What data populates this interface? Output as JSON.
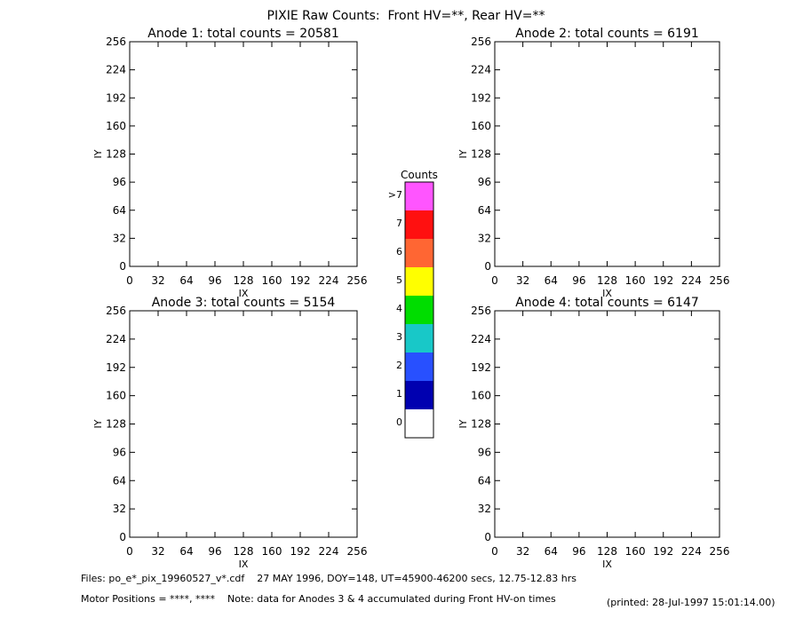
{
  "title": "PIXIE Raw Counts:  Front HV=**, Rear HV=**",
  "colorbar": {
    "title": "Counts",
    "labels": [
      "0",
      "1",
      "2",
      "3",
      "4",
      "5",
      "6",
      "7",
      ">7"
    ],
    "colors": [
      "#ffffff",
      "#0000b0",
      "#2850ff",
      "#18c8c8",
      "#00dd00",
      "#ffff00",
      "#ff6633",
      "#ff1010",
      "#ff55ff"
    ]
  },
  "footer": {
    "files": "Files: po_e*_pix_19960527_v*.cdf    27 MAY 1996, DOY=148, UT=45900-46200 secs, 12.75-12.83 hrs",
    "motor": "Motor Positions = ****, ****    Note: data for Anodes 3 & 4 accumulated during Front HV-on times",
    "printed": "(printed: 28-Jul-1997 15:01:14.00)"
  },
  "chart_data": [
    {
      "type": "scatter",
      "title": "Anode 1: total counts = 20581",
      "xlabel": "IX",
      "ylabel": "IY",
      "xlim": [
        0,
        256
      ],
      "ylim": [
        0,
        256
      ],
      "xticks": [
        0,
        32,
        64,
        96,
        128,
        160,
        192,
        224,
        256
      ],
      "yticks": [
        0,
        32,
        64,
        96,
        128,
        160,
        192,
        224,
        256
      ]
    },
    {
      "type": "scatter",
      "title": "Anode 2: total counts = 6191",
      "xlabel": "IX",
      "ylabel": "IY",
      "xlim": [
        0,
        256
      ],
      "ylim": [
        0,
        256
      ],
      "xticks": [
        0,
        32,
        64,
        96,
        128,
        160,
        192,
        224,
        256
      ],
      "yticks": [
        0,
        32,
        64,
        96,
        128,
        160,
        192,
        224,
        256
      ]
    },
    {
      "type": "scatter",
      "title": "Anode 3: total counts = 5154",
      "xlabel": "IX",
      "ylabel": "IY",
      "xlim": [
        0,
        256
      ],
      "ylim": [
        0,
        256
      ],
      "xticks": [
        0,
        32,
        64,
        96,
        128,
        160,
        192,
        224,
        256
      ],
      "yticks": [
        0,
        32,
        64,
        96,
        128,
        160,
        192,
        224,
        256
      ]
    },
    {
      "type": "scatter",
      "title": "Anode 4: total counts = 6147",
      "xlabel": "IX",
      "ylabel": "IY",
      "xlim": [
        0,
        256
      ],
      "ylim": [
        0,
        256
      ],
      "xticks": [
        0,
        32,
        64,
        96,
        128,
        160,
        192,
        224,
        256
      ],
      "yticks": [
        0,
        32,
        64,
        96,
        128,
        160,
        192,
        224,
        256
      ]
    }
  ]
}
